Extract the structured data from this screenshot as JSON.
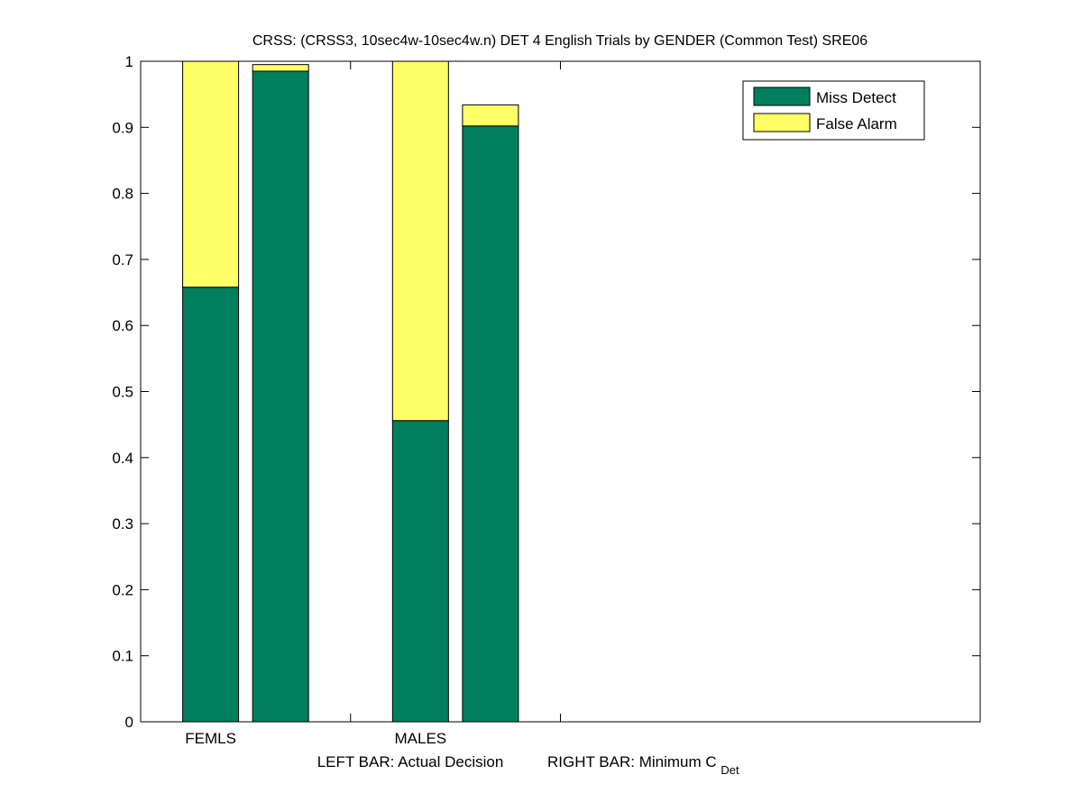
{
  "chart_data": {
    "type": "bar",
    "stacked": true,
    "title": "CRSS: (CRSS3, 10sec4w-10sec4w.n) DET 4 English Trials by GENDER (Common Test) SRE06",
    "xlabel": {
      "left": "LEFT BAR: Actual Decision",
      "right": "RIGHT BAR: Minimum C",
      "right_subscript": "Det"
    },
    "categories": [
      "FEMLS",
      "MALES"
    ],
    "ylim": [
      0,
      1
    ],
    "yticks": [
      "0",
      "0.1",
      "0.2",
      "0.3",
      "0.4",
      "0.5",
      "0.6",
      "0.7",
      "0.8",
      "0.9",
      "1"
    ],
    "grid": false,
    "legend_position": "top-right",
    "series": [
      {
        "name": "Miss Detect",
        "color": "#007f5f"
      },
      {
        "name": "False Alarm",
        "color": "#ffff66"
      }
    ],
    "bars": [
      {
        "category": "FEMLS",
        "kind": "Actual Decision",
        "miss": 0.658,
        "false_alarm": 0.342
      },
      {
        "category": "FEMLS",
        "kind": "Minimum C_Det",
        "miss": 0.985,
        "false_alarm": 0.01
      },
      {
        "category": "MALES",
        "kind": "Actual Decision",
        "miss": 0.456,
        "false_alarm": 0.544
      },
      {
        "category": "MALES",
        "kind": "Minimum C_Det",
        "miss": 0.902,
        "false_alarm": 0.032
      }
    ]
  }
}
